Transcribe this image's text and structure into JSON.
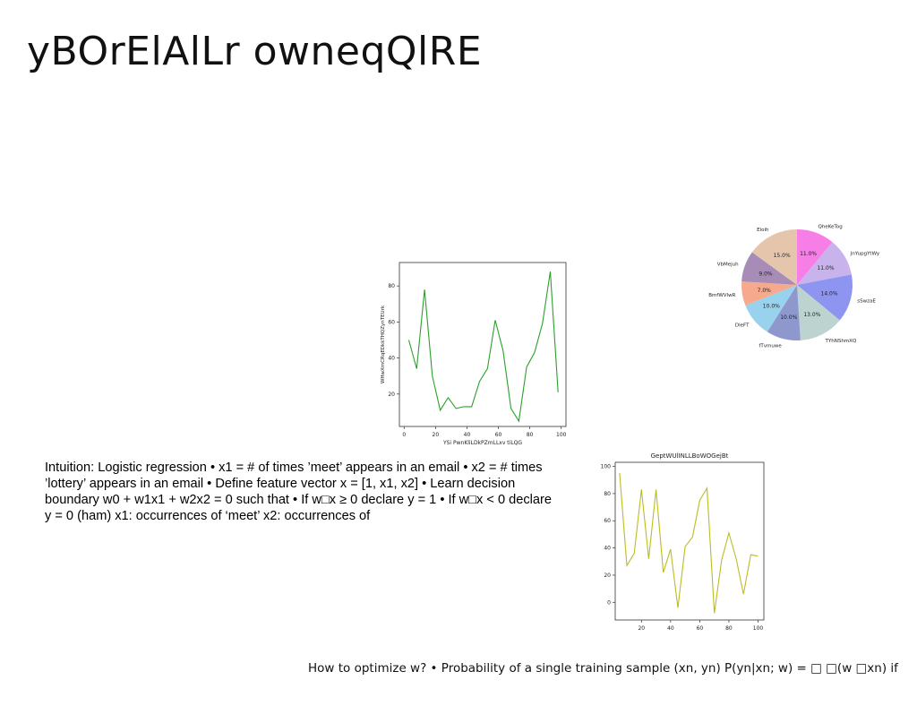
{
  "title": "yBOrElAlLr owneqQlRE",
  "paragraph": "Intuition: Logistic regression • x1 = # of times ’meet’ appears in an email • x2 = # times ’lottery’ appears in an email • Define feature vector x = [1, x1, x2] • Learn decision boundary w0 + w1x1 + w2x2 = 0 such that • If w□x ≥ 0 declare y = 1 • If w□x < 0 declare y = 0 (ham) x1: occurrences of ‘meet’ x2: occurrences of",
  "footer": "How to optimize w? • Probability of a single training sample (xn, yn) P(yn|xn; w) = □ □(w □xn) if",
  "chart_data": [
    {
      "type": "line",
      "title": "",
      "xlabel": "YSi PwnKliLDkPZmLLxv tiLQG",
      "ylabel": "WHwXmCRqEDkkTHQZynTEUrk",
      "xlim": [
        -3,
        103
      ],
      "ylim": [
        2,
        93
      ],
      "xticks": [
        0,
        20,
        40,
        60,
        80,
        100
      ],
      "yticks": [
        20,
        40,
        60,
        80
      ],
      "grid": false,
      "series": [
        {
          "color": "#2ca02c",
          "x": [
            3,
            8,
            13,
            18,
            23,
            28,
            33,
            38,
            43,
            48,
            53,
            58,
            63,
            68,
            73,
            78,
            83,
            88,
            93,
            98
          ],
          "y": [
            50,
            34,
            78,
            30,
            11,
            18,
            12,
            13,
            13,
            27,
            34,
            61,
            44,
            12,
            5,
            35,
            43,
            59,
            88,
            21
          ]
        }
      ]
    },
    {
      "type": "pie",
      "title": "",
      "slices": [
        {
          "label": "QheKeTog",
          "value": 11.0,
          "pct": "11.0%",
          "color": "#f77ee6"
        },
        {
          "label": "JnYupgYtWy",
          "value": 11.0,
          "pct": "11.0%",
          "color": "#c8b3ec"
        },
        {
          "label": "sSwzaE",
          "value": 14.0,
          "pct": "14.0%",
          "color": "#8e95f0"
        },
        {
          "label": "TYhNShmXQ",
          "value": 13.0,
          "pct": "13.0%",
          "color": "#bcd3cf"
        },
        {
          "label": "fTvmuwe",
          "value": 10.0,
          "pct": "10.0%",
          "color": "#8f98cc"
        },
        {
          "label": "DleFT",
          "value": 10.0,
          "pct": "10.0%",
          "color": "#99d2ec"
        },
        {
          "label": "BmfWVlwR",
          "value": 7.0,
          "pct": "7.0%",
          "color": "#f6a98c"
        },
        {
          "label": "VbMejuh",
          "value": 9.0,
          "pct": "9.0%",
          "color": "#a68cb7"
        },
        {
          "label": "Eloih",
          "value": 15.0,
          "pct": "15.0%",
          "color": "#e5c6ad"
        }
      ]
    },
    {
      "type": "line",
      "title": "GeptWUlINLLBoWOGejBt",
      "xlabel": "",
      "ylabel": "",
      "xlim": [
        2,
        104
      ],
      "ylim": [
        -13,
        103
      ],
      "xticks": [
        20,
        40,
        60,
        80,
        100
      ],
      "yticks": [
        0,
        20,
        40,
        60,
        80,
        100
      ],
      "grid": false,
      "series": [
        {
          "color": "#bcbd22",
          "x": [
            5,
            10,
            15,
            20,
            25,
            30,
            35,
            40,
            45,
            50,
            55,
            60,
            65,
            70,
            75,
            80,
            85,
            90,
            95,
            100
          ],
          "y": [
            95,
            27,
            36,
            83,
            32,
            83,
            22,
            39,
            -4,
            41,
            48,
            75,
            84,
            -8,
            31,
            51,
            32,
            6,
            35,
            34
          ]
        }
      ]
    }
  ]
}
